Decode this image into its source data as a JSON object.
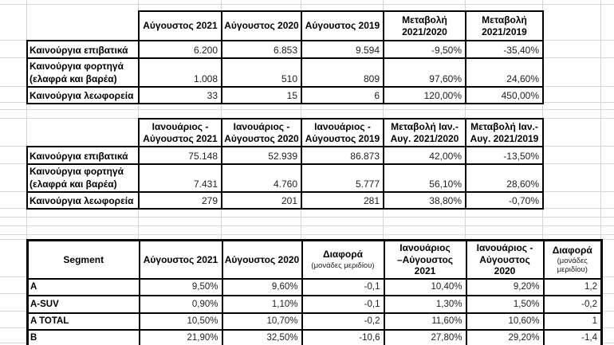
{
  "colors": {
    "table_border": "#000000",
    "gridline": "#d6d6d6",
    "text": "#000000"
  },
  "table_august": {
    "headers": [
      {
        "line1": "Αύγουστος 2021",
        "line2": ""
      },
      {
        "line1": "Αύγουστος 2020",
        "line2": ""
      },
      {
        "line1": "Αύγουστος 2019",
        "line2": ""
      },
      {
        "line1": "Μεταβολή",
        "line2": "2021/2020"
      },
      {
        "line1": "Μεταβολή",
        "line2": "2021/2019"
      }
    ],
    "rows": [
      {
        "label_line1": "Καινούργια επιβατικά",
        "label_line2": "",
        "values": [
          "6.200",
          "6.853",
          "9.594",
          "-9,50%",
          "-35,40%"
        ]
      },
      {
        "label_line1": "Καινούργια φορτηγά",
        "label_line2": "(ελαφρά και βαρέα)",
        "values": [
          "1.008",
          "510",
          "809",
          "97,60%",
          "24,60%"
        ]
      },
      {
        "label_line1": "Καινούργια λεωφορεία",
        "label_line2": "",
        "values": [
          "33",
          "15",
          "6",
          "120,00%",
          "450,00%"
        ]
      }
    ]
  },
  "table_jan_august": {
    "headers": [
      {
        "line1": "Ιανουάριος -",
        "line2": "Αύγουστος 2021"
      },
      {
        "line1": "Ιανουάριος -",
        "line2": "Αύγουστος 2020"
      },
      {
        "line1": "Ιανουάριος -",
        "line2": "Αύγουστος 2019"
      },
      {
        "line1": "Μεταβολή Ιαν.-",
        "line2": "Αυγ. 2021/2020"
      },
      {
        "line1": "Μεταβολή Ιαν.-",
        "line2": "Αυγ. 2021/2019"
      }
    ],
    "rows": [
      {
        "label_line1": "Καινούργια επιβατικά",
        "label_line2": "",
        "values": [
          "75.148",
          "52.939",
          "86.873",
          "42,00%",
          "-13,50%"
        ]
      },
      {
        "label_line1": "Καινούργια φορτηγά",
        "label_line2": "(ελαφρά και βαρέα)",
        "values": [
          "7.431",
          "4.760",
          "5.777",
          "56,10%",
          "28,60%"
        ]
      },
      {
        "label_line1": "Καινούργια λεωφορεία",
        "label_line2": "",
        "values": [
          "279",
          "201",
          "281",
          "38,80%",
          "-0,70%"
        ]
      }
    ]
  },
  "table_segments": {
    "headers": {
      "segment": "Segment",
      "aug_2021": "Αύγουστος 2021",
      "aug_2020": "Αύγουστος 2020",
      "diff1_title": "Διαφορά",
      "diff1_subtitle": "(μονάδες μεριδίου)",
      "jan_aug_2021_line1": "Ιανουάριος",
      "jan_aug_2021_line2": "–Αύγουστος 2021",
      "jan_aug_2020_line1": "Ιανουάριος -",
      "jan_aug_2020_line2": "Αύγουστος 2020",
      "diff2_title": "Διαφορά",
      "diff2_subtitle": "(μονάδες μεριδίου)"
    },
    "rows": [
      {
        "label": "A",
        "values": [
          "9,50%",
          "9,60%",
          "-0,1",
          "10,40%",
          "9,20%",
          "1,2"
        ]
      },
      {
        "label": "A-SUV",
        "values": [
          "0,90%",
          "1,10%",
          "-0,1",
          "1,30%",
          "1,50%",
          "-0,2"
        ]
      },
      {
        "label": "A TOTAL",
        "values": [
          "10,50%",
          "10,70%",
          "-0,2",
          "11,60%",
          "10,60%",
          "1"
        ]
      },
      {
        "label": "B",
        "values": [
          "21,90%",
          "32,50%",
          "-10,6",
          "27,80%",
          "29,20%",
          "-1,4"
        ]
      }
    ]
  }
}
